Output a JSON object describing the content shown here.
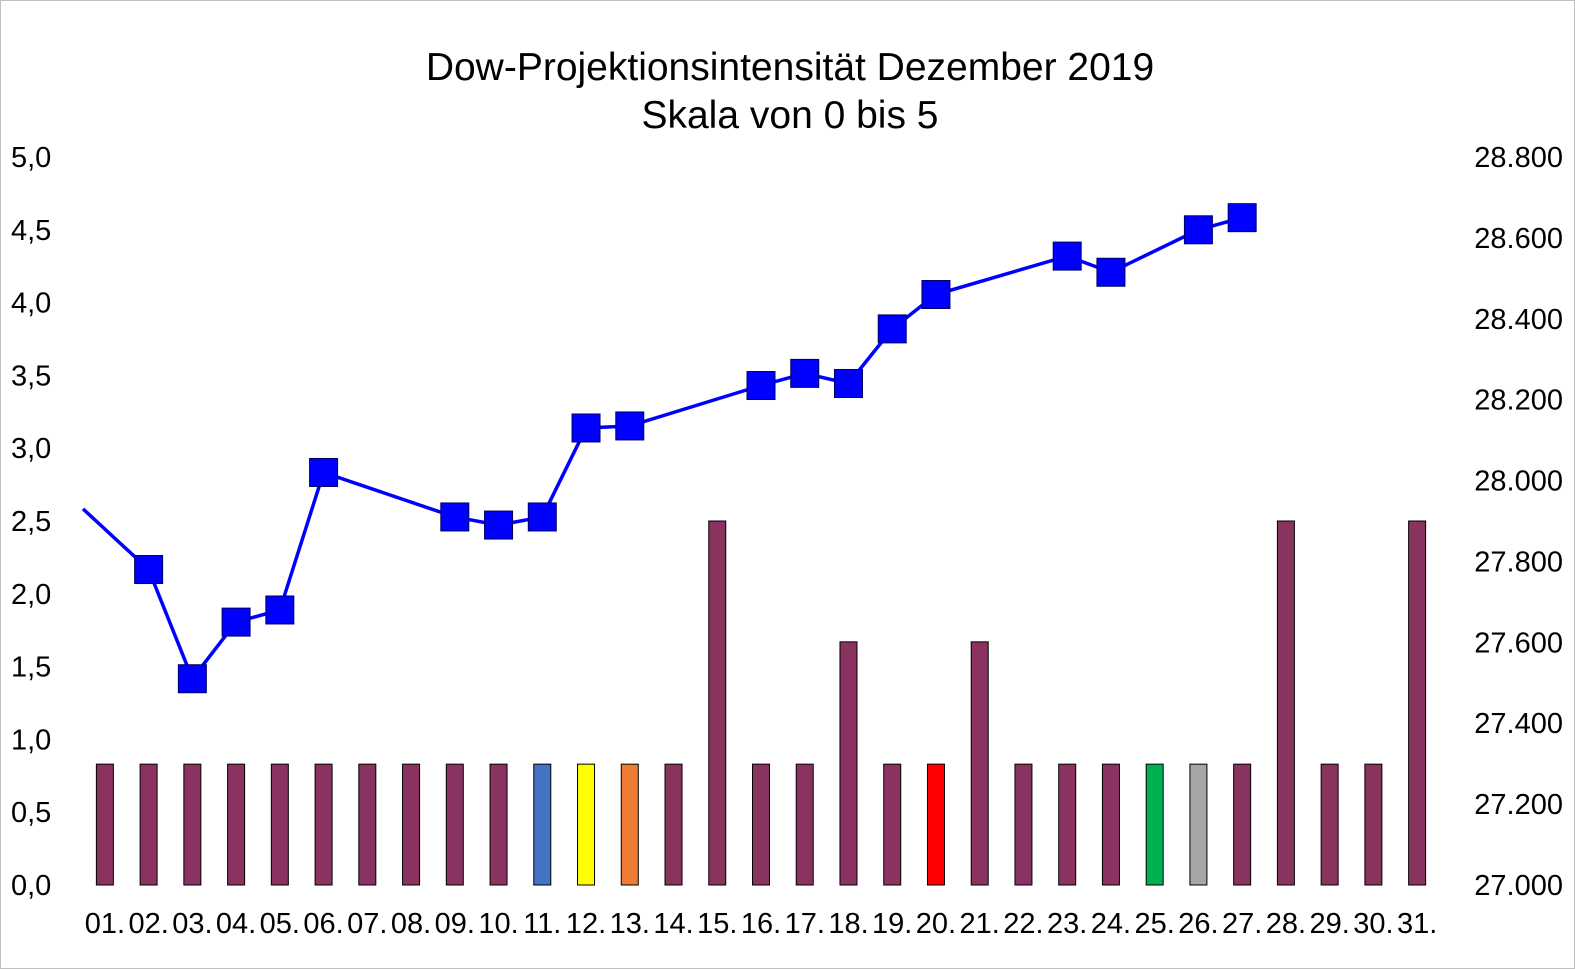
{
  "chart_data": {
    "type": "bar+line",
    "title": "Dow-Projektionsintensität Dezember 2019",
    "subtitle": "Skala von 0 bis 5",
    "categories": [
      "01.",
      "02.",
      "03.",
      "04.",
      "05.",
      "06.",
      "07.",
      "08.",
      "09.",
      "10.",
      "11.",
      "12.",
      "13.",
      "14.",
      "15.",
      "16.",
      "17.",
      "18.",
      "19.",
      "20.",
      "21.",
      "22.",
      "23.",
      "24.",
      "25.",
      "26.",
      "27.",
      "28.",
      "29.",
      "30.",
      "31."
    ],
    "y_left": {
      "ylim": [
        0,
        5
      ],
      "ticks": [
        "0,0",
        "0,5",
        "1,0",
        "1,5",
        "2,0",
        "2,5",
        "3,0",
        "3,5",
        "4,0",
        "4,5",
        "5,0"
      ]
    },
    "y_right": {
      "ylim": [
        27000,
        28800
      ],
      "ticks": [
        "27.000",
        "27.200",
        "27.400",
        "27.600",
        "27.800",
        "28.000",
        "28.200",
        "28.400",
        "28.600",
        "28.800"
      ]
    },
    "grid": false,
    "legend": "none",
    "series": [
      {
        "type": "bar",
        "axis": "left",
        "values": [
          0.83,
          0.83,
          0.83,
          0.83,
          0.83,
          0.83,
          0.83,
          0.83,
          0.83,
          0.83,
          0.83,
          0.83,
          0.83,
          0.83,
          2.5,
          0.83,
          0.83,
          1.67,
          0.83,
          0.83,
          1.67,
          0.83,
          0.83,
          0.83,
          0.83,
          0.83,
          0.83,
          2.5,
          0.83,
          0.83,
          2.5
        ],
        "colors": [
          "#8b3360",
          "#8b3360",
          "#8b3360",
          "#8b3360",
          "#8b3360",
          "#8b3360",
          "#8b3360",
          "#8b3360",
          "#8b3360",
          "#8b3360",
          "#4472c4",
          "#ffff00",
          "#ed7d31",
          "#8b3360",
          "#8b3360",
          "#8b3360",
          "#8b3360",
          "#8b3360",
          "#8b3360",
          "#ff0000",
          "#8b3360",
          "#8b3360",
          "#8b3360",
          "#8b3360",
          "#00b050",
          "#a6a6a6",
          "#8b3360",
          "#8b3360",
          "#8b3360",
          "#8b3360",
          "#8b3360"
        ]
      },
      {
        "type": "line",
        "axis": "right",
        "color": "#0000ff",
        "line_start_value": 27930,
        "values": [
          null,
          27780,
          27510,
          27650,
          27680,
          28020,
          null,
          null,
          27910,
          27890,
          27910,
          28130,
          28135,
          null,
          null,
          28235,
          28265,
          28240,
          28375,
          28460,
          null,
          null,
          28555,
          28515,
          null,
          28620,
          28650,
          null,
          null,
          null,
          null
        ]
      }
    ]
  }
}
